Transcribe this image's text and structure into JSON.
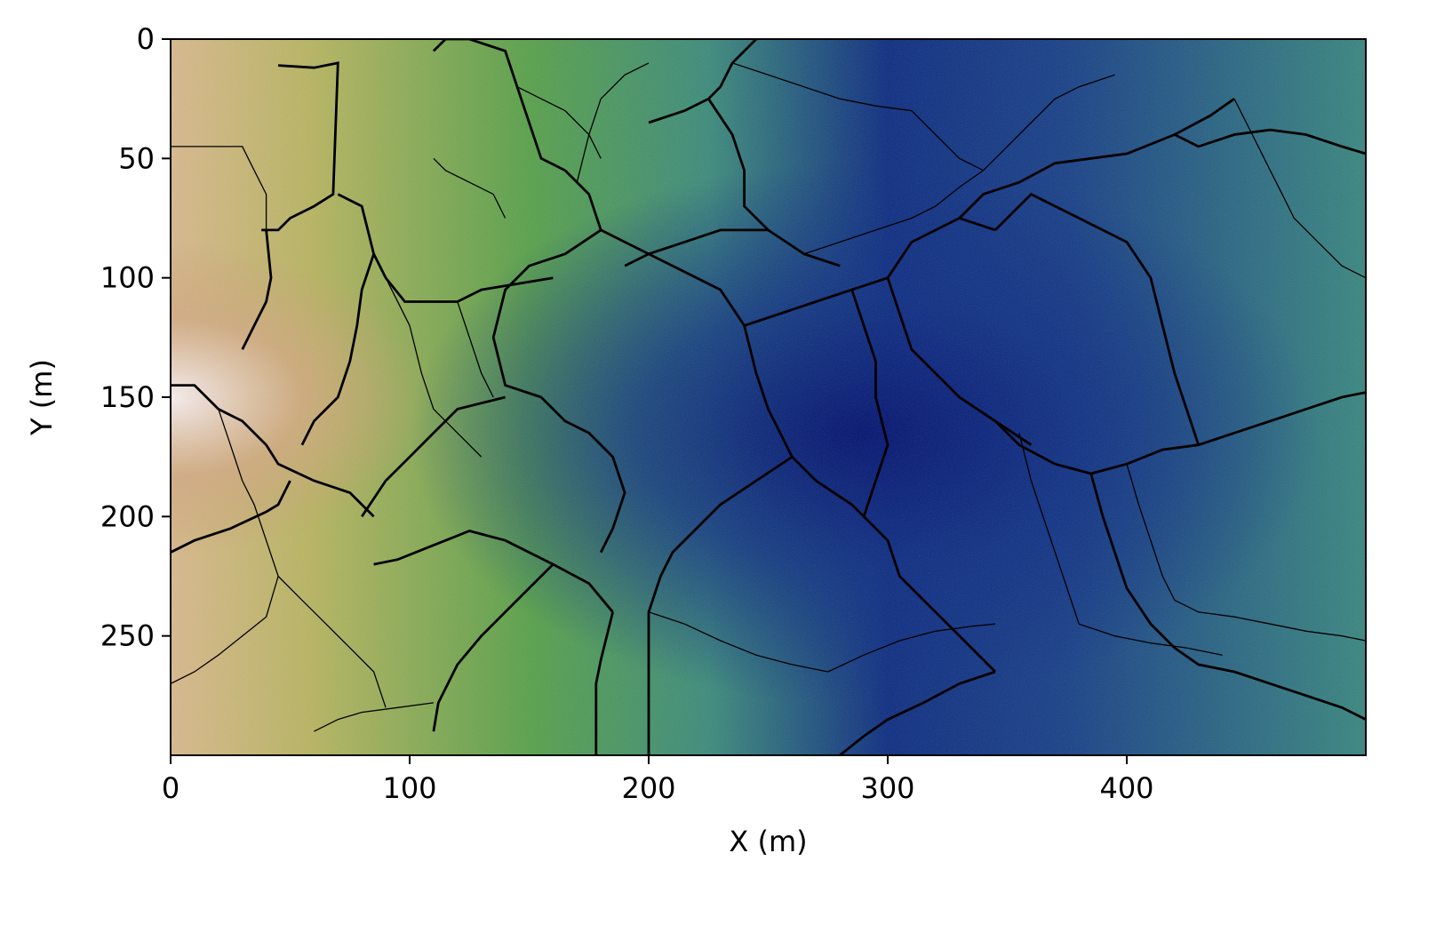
{
  "chart_data": {
    "type": "heatmap",
    "title": "",
    "xlabel": "X (m)",
    "ylabel": "Y (m)",
    "xlim": [
      0,
      500
    ],
    "ylim": [
      300,
      0
    ],
    "y_axis_inverted": true,
    "xticks": [
      0,
      100,
      200,
      300,
      400
    ],
    "yticks": [
      0,
      50,
      100,
      150,
      200,
      250
    ],
    "colormap": "gist_earth",
    "colormap_stops": [
      "#000080",
      "#2e7a8a",
      "#4a9a48",
      "#b3b35a",
      "#c8a070",
      "#f8f0f0"
    ],
    "field_description": "low values (dark navy) centered near x=320,y=160; high values (light tan/white) near x=0,y=150",
    "field_minimum_center": [
      320,
      160
    ],
    "field_maximum_center": [
      0,
      150
    ],
    "grid": false,
    "legend": "none",
    "overlay": "segmentation boundaries (thick and thin black lines)"
  }
}
